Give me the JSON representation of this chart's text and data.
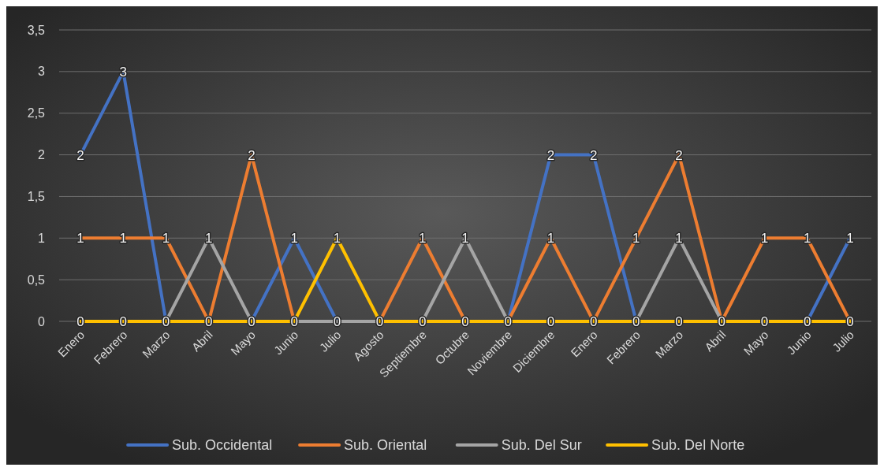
{
  "chart_data": {
    "type": "line",
    "categories": [
      "Enero",
      "Febrero",
      "Marzo",
      "Abril",
      "Mayo",
      "Junio",
      "Julio",
      "Agosto",
      "Septiembre",
      "Octubre",
      "Noviembre",
      "Diciembre",
      "Enero",
      "Febrero",
      "Marzo",
      "Abril",
      "Mayo",
      "Junio",
      "Julio"
    ],
    "series": [
      {
        "name": "Sub. Occidental",
        "color": "#4472c4",
        "values": [
          2,
          3,
          0,
          0,
          0,
          1,
          0,
          0,
          0,
          0,
          0,
          2,
          2,
          0,
          0,
          0,
          0,
          0,
          1
        ],
        "value_labels": [
          "2",
          "3",
          null,
          null,
          null,
          "1",
          null,
          null,
          null,
          null,
          null,
          "2",
          "2",
          null,
          null,
          null,
          null,
          null,
          "1"
        ]
      },
      {
        "name": "Sub. Oriental",
        "color": "#ed7d31",
        "values": [
          1,
          1,
          1,
          0,
          2,
          0,
          0,
          0,
          1,
          0,
          0,
          1,
          0,
          1,
          2,
          0,
          1,
          1,
          0
        ],
        "value_labels": [
          "1",
          "1",
          "1",
          null,
          "2",
          null,
          null,
          null,
          "1",
          null,
          null,
          "1",
          null,
          "1",
          "2",
          null,
          "1",
          "1",
          null
        ]
      },
      {
        "name": "Sub. Del Sur",
        "color": "#a5a5a5",
        "values": [
          0,
          0,
          0,
          1,
          0,
          0,
          0,
          0,
          0,
          1,
          0,
          0,
          0,
          0,
          1,
          0,
          0,
          0,
          0
        ],
        "value_labels": [
          null,
          null,
          null,
          "1",
          null,
          null,
          "0",
          null,
          null,
          "1",
          null,
          null,
          null,
          null,
          "1",
          null,
          null,
          null,
          null
        ]
      },
      {
        "name": "Sub. Del Norte",
        "color": "#ffc000",
        "values": [
          0,
          0,
          0,
          0,
          0,
          0,
          1,
          0,
          0,
          0,
          0,
          0,
          0,
          0,
          0,
          0,
          0,
          0,
          0
        ],
        "value_labels": [
          "0",
          "0",
          "0",
          "0",
          "0",
          "0",
          "1",
          "0",
          "0",
          "0",
          "0",
          "0",
          "0",
          "0",
          "0",
          "0",
          "0",
          "0",
          "0"
        ]
      }
    ],
    "ylim": [
      0,
      3.5
    ],
    "yticks": [
      0,
      {
        "value": 0.5,
        "label": "0,5"
      },
      1,
      {
        "value": 1.5,
        "label": "1,5"
      },
      2,
      {
        "value": 2.5,
        "label": "2,5"
      },
      3,
      {
        "value": 3.5,
        "label": "3,5"
      }
    ],
    "grid": "y",
    "legend": "bottom",
    "marker": "none",
    "line_style": "solid"
  }
}
